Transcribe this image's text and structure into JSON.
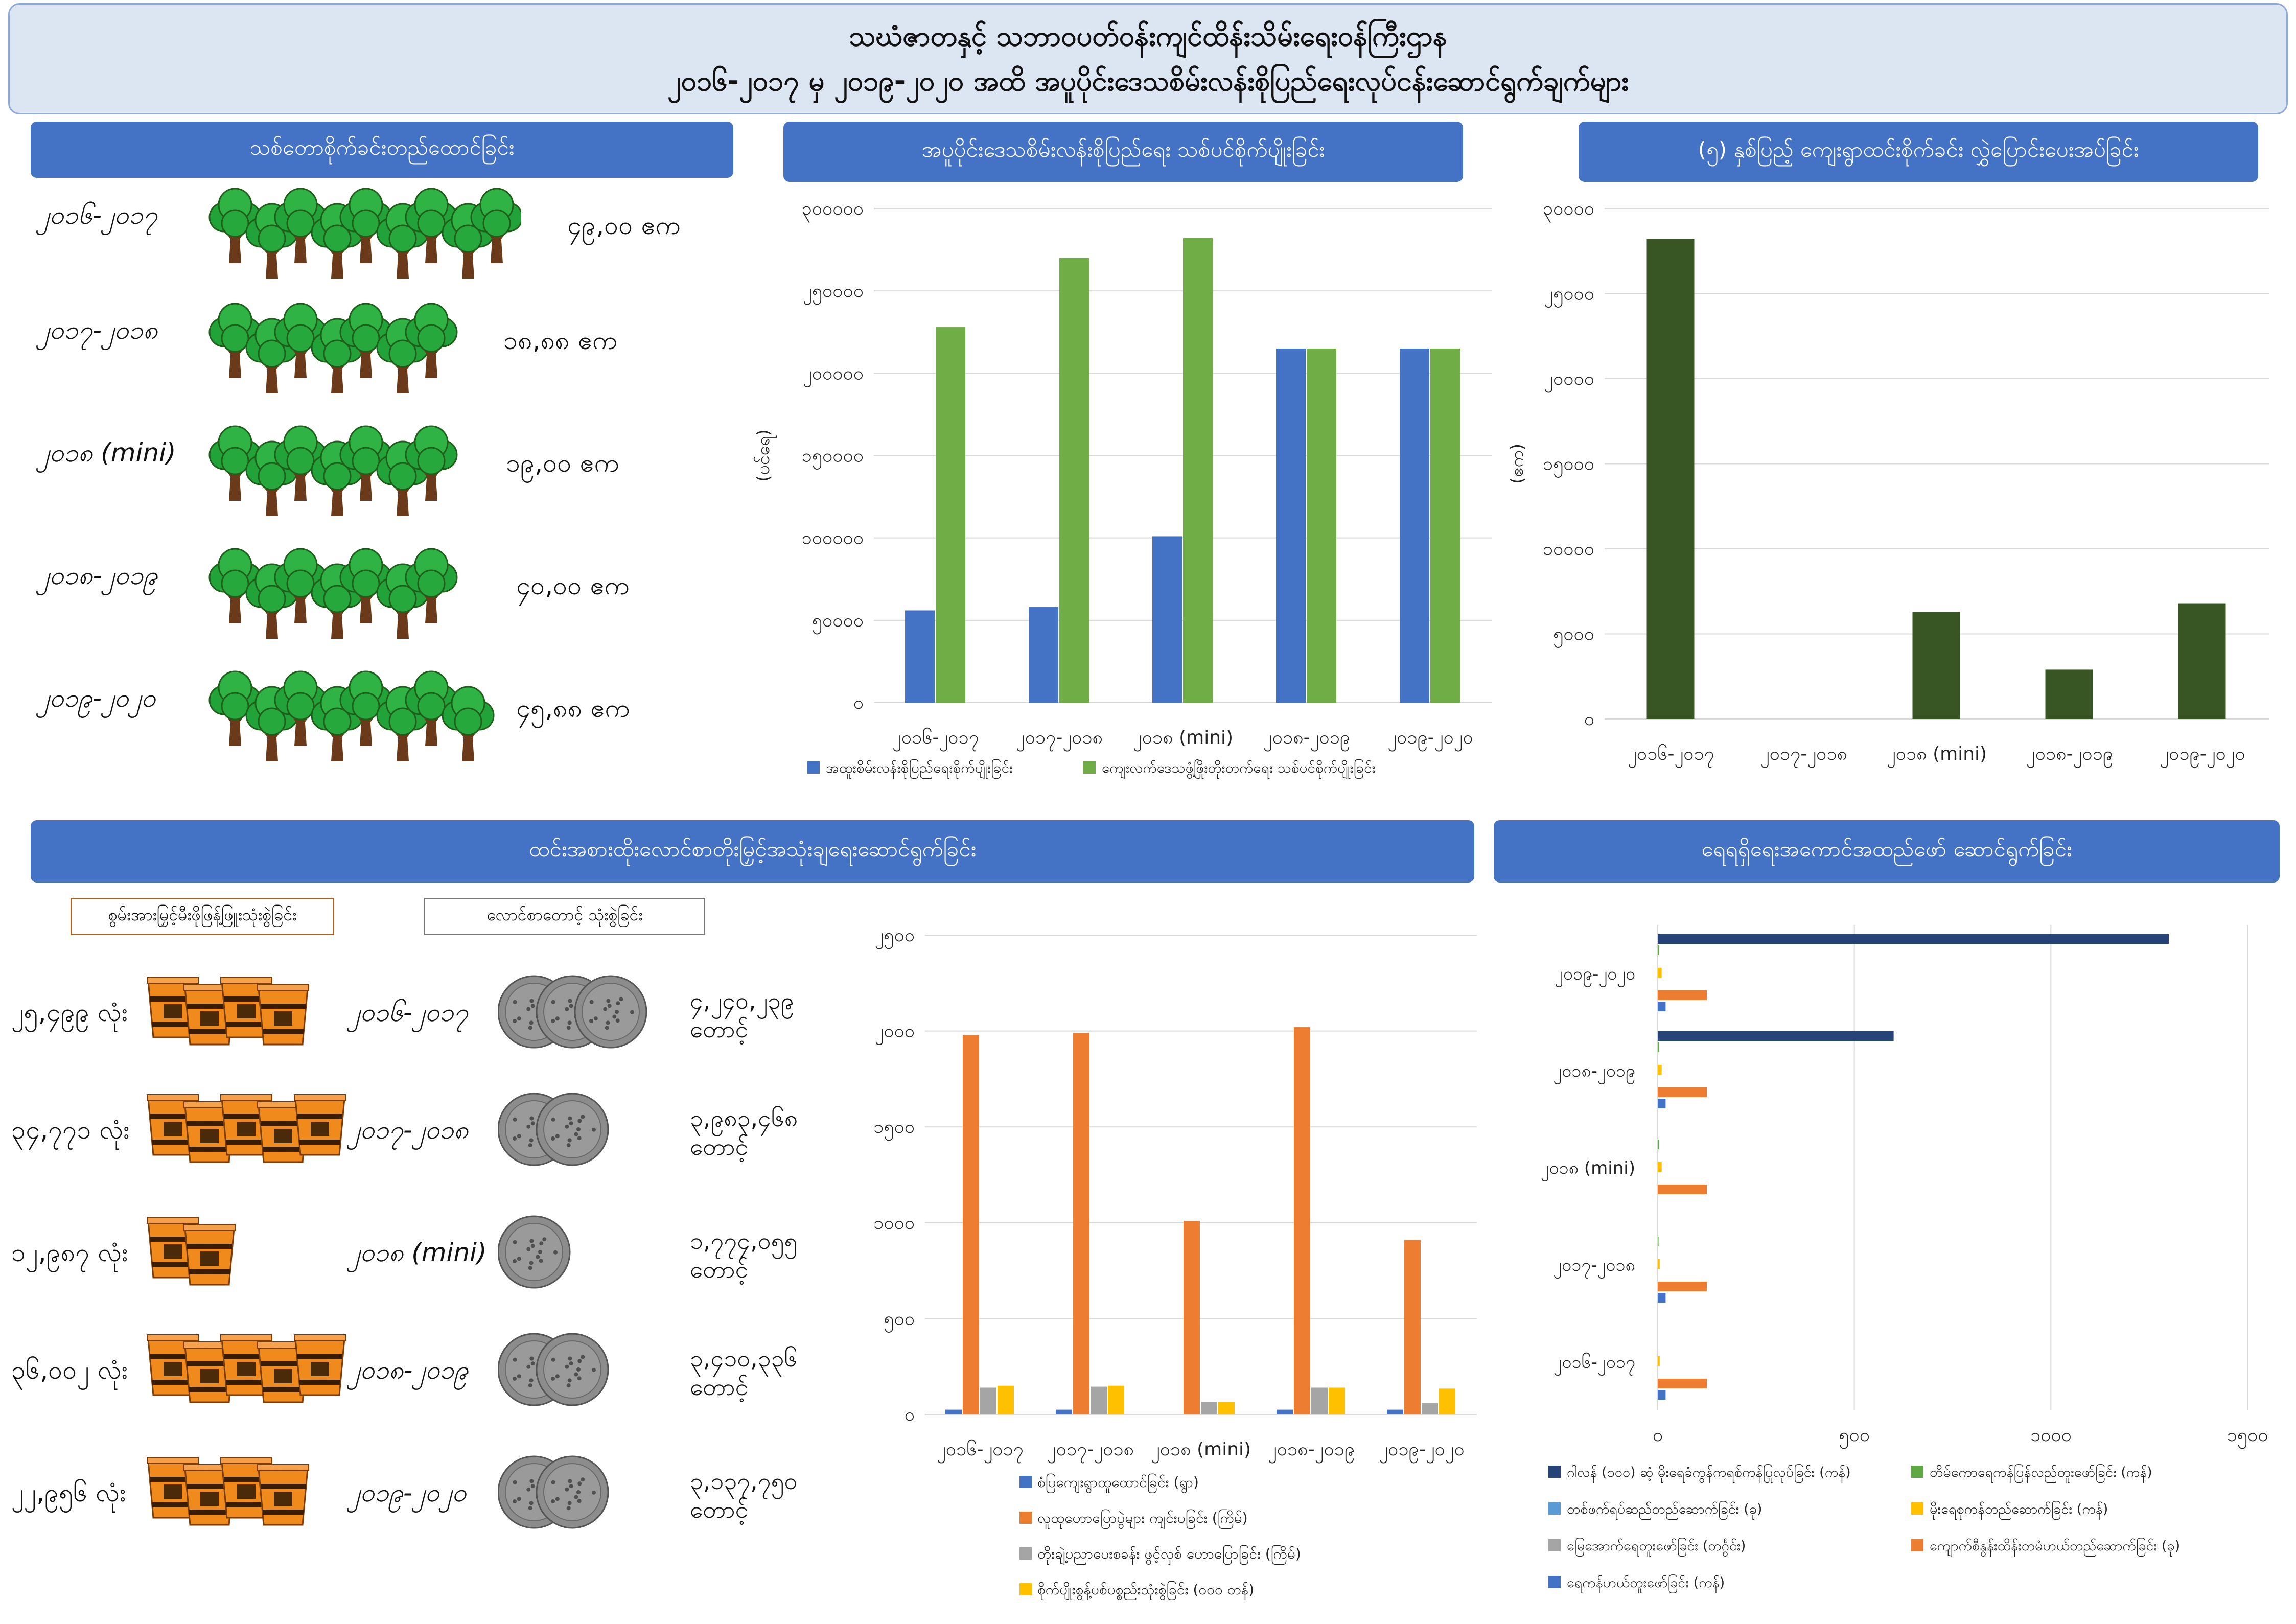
{
  "title": {
    "line1": "သဃံဇာတနှင့် သဘာဝပတ်ဝန်းကျင်ထိန်းသိမ်းရေးဝန်ကြီးဌာန",
    "line2": "၂၀၁၆-၂၀၁၇ မှ ၂၀၁၉-၂၀၂၀ အထိ အပူပိုင်းဒေသစိမ်းလန်းစိုပြည်ရေးလုပ်ငန်းဆောင်ရွက်ချက်များ"
  },
  "sections": {
    "tree_planting": "သစ်တောစိုက်ခင်းတည်ထောင်ခြင်း",
    "seedlings": "အပူပိုင်းဒေသစိမ်းလန်းစိုပြည်ရေး သစ်ပင်စိုက်ပျိုးခြင်း",
    "five_year": "(၅) နှစ်ပြည့် ကျေးရွာထင်းစိုက်ခင်း လွှဲပြောင်းပေးအပ်ခြင်း",
    "fuel": "ထင်းအစားထိုးလောင်စာတိုးမြှင့်အသုံးချရေးဆောင်ရွက်ခြင်း",
    "water": "ရေရရှိရေးအကောင်အထည်ဖော် ဆောင်ရွက်ခြင်း"
  },
  "plantation_rows": [
    {
      "year": "၂၀၁၆-၂၀၁၇",
      "value": "၄၉,၀၀ ဧက",
      "trees": 9
    },
    {
      "year": "၂၀၁၇-၂၀၁၈",
      "value": "၁၈,၈၈ ဧက",
      "trees": 7
    },
    {
      "year": "၂၀၁၈ (mini)",
      "value": "၁၉,၀၀ ဧက",
      "trees": 7
    },
    {
      "year": "၂၀၁၈-၂၀၁၉",
      "value": "၄၀,၀၀ ဧက",
      "trees": 7
    },
    {
      "year": "၂၀၁၉-၂၀၂၀",
      "value": "၄၅,၈၈ ဧက",
      "trees": 8
    }
  ],
  "fuel_legend": {
    "stove_label": "စွမ်းအားမြှင့်မီးဖိုဖြန့်ဖြူးသုံးစွဲခြင်း",
    "briquette_label": "လောင်စာတောင့် သုံးစွဲခြင်း"
  },
  "fuel_rows": [
    {
      "year": "၂၀၁၆-၂၀၁၇",
      "stoves": "၂၅,၄၉၉ လုံး",
      "stove_icons": 4,
      "briquette_line1": "၄,၂၄၀,၂၃၉",
      "briquette_line2": "တောင့်",
      "briquette_icons": 3
    },
    {
      "year": "၂၀၁၇-၂၀၁၈",
      "stoves": "၃၄,၇၇၁ လုံး",
      "stove_icons": 5,
      "briquette_line1": "၃,၉၈၃,၄၆၈",
      "briquette_line2": "တောင့်",
      "briquette_icons": 2
    },
    {
      "year": "၂၀၁၈ (mini)",
      "stoves": "၁၂,၉၈၇ လုံး",
      "stove_icons": 2,
      "briquette_line1": "၁,၇၇၄,၀၅၅",
      "briquette_line2": "တောင့်",
      "briquette_icons": 1
    },
    {
      "year": "၂၀၁၈-၂၀၁၉",
      "stoves": "၃၆,၀၀၂ လုံး",
      "stove_icons": 5,
      "briquette_line1": "၃,၄၁၀,၃၃၆",
      "briquette_line2": "တောင့်",
      "briquette_icons": 2
    },
    {
      "year": "၂၀၁၉-၂၀၂၀",
      "stoves": "၂၂,၉၅၆ လုံး",
      "stove_icons": 4,
      "briquette_line1": "၃,၁၃၇,၇၅၀",
      "briquette_line2": "တောင့်",
      "briquette_icons": 2
    }
  ],
  "colors": {
    "blue": "#4472c4",
    "green": "#70ad47",
    "dark_green": "#375623",
    "orange": "#ed7d31",
    "gray": "#a5a5a5",
    "yellow": "#ffc000",
    "light_blue": "#5b9bd5",
    "navy": "#264478",
    "med_green": "#5fa845"
  },
  "chart_data": [
    {
      "type": "bar",
      "categories": [
        "၂၀၁၆-၂၀၁၇",
        "၂၀၁၇-၂၀၁၈",
        "၂၀၁၈ (mini)",
        "၂၀၁၈-၂၀၁၉",
        "၂၀၁၉-၂၀၂၀"
      ],
      "series": [
        {
          "name": "အထူးစိမ်းလန်းစိုပြည်ရေးစိုက်ပျိုးခြင်း",
          "values": [
            56000,
            58000,
            101000,
            215000,
            215000
          ]
        },
        {
          "name": "ကျေးလက်ဒေသဖွံ့ဖြိုးတိုးတက်ရေး သစ်ပင်စိုက်ပျိုးခြင်း",
          "values": [
            228000,
            270000,
            282000,
            215000,
            215000
          ]
        }
      ],
      "ylabel": "(ပင်ရေ)",
      "ylim": [
        0,
        300000
      ],
      "yticks": [
        "၀",
        "၅၀၀၀၀",
        "၁၀၀၀၀၀",
        "၁၅၀၀၀၀",
        "၂၀၀၀၀၀",
        "၂၅၀၀၀၀",
        "၃၀၀၀၀၀"
      ],
      "legend_position": "bottom"
    },
    {
      "type": "bar",
      "categories": [
        "၂၀၁၆-၂၀၁၇",
        "၂၀၁၇-၂၀၁၈",
        "၂၀၁၈ (mini)",
        "၂၀၁၈-၂၀၁၉",
        "၂၀၁၉-၂၀၂၀"
      ],
      "series": [
        {
          "values": [
            28200,
            0,
            6300,
            2900,
            6800
          ]
        }
      ],
      "ylabel": "(ဧက)",
      "ylim": [
        0,
        30000
      ],
      "yticks": [
        "၀",
        "၅၀၀၀",
        "၁၀၀၀၀",
        "၁၅၀၀၀",
        "၂၀၀၀၀",
        "၂၅၀၀၀",
        "၃၀၀၀၀"
      ]
    },
    {
      "type": "bar",
      "categories": [
        "၂၀၁၆-၂၀၁၇",
        "၂၀၁၇-၂၀၁၈",
        "၂၀၁၈ (mini)",
        "၂၀၁၈-၂၀၁၉",
        "၂၀၁၉-၂၀၂၀"
      ],
      "series": [
        {
          "name": "စံပြကျေးရွာထူထောင်ခြင်း (ရွာ)",
          "values": [
            25,
            25,
            0,
            25,
            25
          ]
        },
        {
          "name": "လူထုဟောပြောပွဲများ ကျင်းပခြင်း (ကြိမ်)",
          "values": [
            1980,
            1990,
            1010,
            2020,
            910
          ]
        },
        {
          "name": "တိုးချဲ့ပညာပေးစခန်း ဖွင့်လှစ် ဟောပြောခြင်း (ကြိမ်)",
          "values": [
            140,
            145,
            65,
            140,
            60
          ]
        },
        {
          "name": "စိုက်ပျိုးစွန့်ပစ်ပစ္စည်းသုံးစွဲခြင်း (၀၀၀ တန်)",
          "values": [
            150,
            150,
            65,
            140,
            135
          ]
        }
      ],
      "ylim": [
        0,
        2500
      ],
      "yticks": [
        "၀",
        "၅၀၀",
        "၁၀၀၀",
        "၁၅၀၀",
        "၂၀၀၀",
        "၂၅၀၀"
      ],
      "legend_position": "bottom"
    },
    {
      "type": "bar",
      "orientation": "horizontal",
      "categories": [
        "၂၀၁၉-၂၀၂၀",
        "၂၀၁၈-၂၀၁၉",
        "၂၀၁၈ (mini)",
        "၂၀၁၇-၂၀၁၈",
        "၂၀၁၆-၂၀၁၇"
      ],
      "series": [
        {
          "name": "ဂါလန် (၁၀၀) ဆံ့ မိုးရေခံကွန်ကရစ်ကန်ပြုလုပ်ခြင်း (ကန်)",
          "values": [
            1300,
            600,
            0,
            0,
            0
          ]
        },
        {
          "name": "တိမ်ကောရေကန်ပြန်လည်တူးဖော်ခြင်း (ကန်)",
          "values": [
            3,
            3,
            3,
            2,
            0
          ]
        },
        {
          "name": "တစ်ဖက်ရပ်ဆည်တည်ဆောက်ခြင်း (ခု)",
          "values": [
            0,
            0,
            0,
            0,
            0
          ]
        },
        {
          "name": "မိုးရေစုကန်တည်ဆောက်ခြင်း (ကန်)",
          "values": [
            10,
            10,
            10,
            5,
            5
          ]
        },
        {
          "name": "မြေအောက်ရေတူးဖော်ခြင်း (တင်္ဂွင်း)",
          "values": [
            0,
            0,
            0,
            0,
            0
          ]
        },
        {
          "name": "ကျောက်စီနွန်းထိန်းတမံဟယ်တည်ဆောက်ခြင်း (ခု)",
          "values": [
            125,
            125,
            125,
            125,
            125
          ]
        },
        {
          "name": "ရေကန်ဟယ်တူးဖော်ခြင်း (ကန်)",
          "values": [
            20,
            20,
            0,
            20,
            20
          ]
        }
      ],
      "xlim": [
        0,
        1500
      ],
      "xticks": [
        "၀",
        "၅၀၀",
        "၁၀၀၀",
        "၁၅၀၀"
      ],
      "legend_position": "bottom"
    }
  ]
}
